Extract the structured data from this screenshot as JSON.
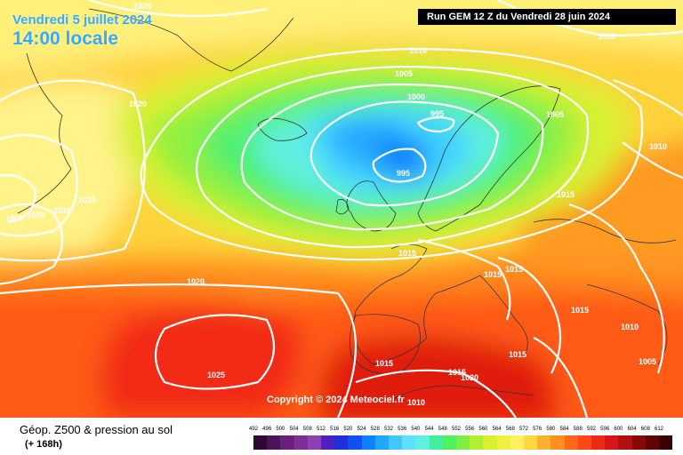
{
  "header": {
    "date": "Vendredi 5 juillet 2024",
    "time": "14:00 locale",
    "run": "Run GEM 12 Z du Vendredi 28 juin 2024",
    "copyright": "Copyright © 2024 Meteociel.fr"
  },
  "footer": {
    "title": "Géop. Z500 & pression au sol",
    "subtitle": "(+ 168h)"
  },
  "isobar_labels": [
    "1025",
    "1020",
    "1020",
    "1010",
    "1005",
    "1000",
    "995",
    "995",
    "1005",
    "1010",
    "1000",
    "1005",
    "1010",
    "1015",
    "1015",
    "1020",
    "1015",
    "1015",
    "1015",
    "1015",
    "1010",
    "1005",
    "1025",
    "1015",
    "1015",
    "1015",
    "1010",
    "1020"
  ],
  "scale": {
    "labels": [
      "492",
      "496",
      "500",
      "504",
      "508",
      "512",
      "516",
      "520",
      "524",
      "528",
      "532",
      "536",
      "540",
      "544",
      "548",
      "552",
      "556",
      "560",
      "564",
      "568",
      "572",
      "576",
      "580",
      "584",
      "588",
      "592",
      "596",
      "600",
      "604",
      "608",
      "612"
    ],
    "colors": [
      "#2d0a33",
      "#4b1457",
      "#6a1f7a",
      "#7d2f95",
      "#9040b0",
      "#5020c0",
      "#2030d8",
      "#1050f0",
      "#1080ff",
      "#20a8ff",
      "#40c8ff",
      "#60e0ff",
      "#60f0e0",
      "#40f0a0",
      "#50f060",
      "#80f040",
      "#b0f030",
      "#d8f030",
      "#f0f040",
      "#fff060",
      "#ffd840",
      "#ffb030",
      "#ff9020",
      "#ff6818",
      "#ff4818",
      "#f02818",
      "#d81818",
      "#b01010",
      "#880808",
      "#600404",
      "#380202"
    ]
  },
  "colors": {
    "title": "#33aaff",
    "isobar": "#ffffff"
  }
}
